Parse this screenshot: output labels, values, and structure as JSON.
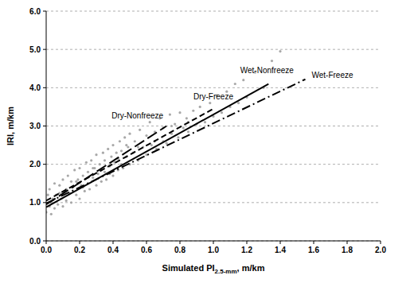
{
  "chart_data": {
    "type": "scatter",
    "x_label": "Simulated PI2.5-mm, m/km",
    "y_label": "IRI, m/km",
    "xlim": [
      0,
      2
    ],
    "ylim": [
      0,
      6
    ],
    "xticks": [
      {
        "value": 0,
        "label": "0.0"
      },
      {
        "value": 0.2,
        "label": "0.2"
      },
      {
        "value": 0.4,
        "label": "0.4"
      },
      {
        "value": 0.6,
        "label": "0.6"
      },
      {
        "value": 0.8,
        "label": "0.8"
      },
      {
        "value": 1,
        "label": "1.0"
      },
      {
        "value": 1.2,
        "label": "1.2"
      },
      {
        "value": 1.4,
        "label": "1.4"
      },
      {
        "value": 1.6,
        "label": "1.6"
      },
      {
        "value": 1.8,
        "label": "1.8"
      },
      {
        "value": 2,
        "label": "2.0"
      }
    ],
    "yticks": [
      {
        "value": 0,
        "label": "0.0"
      },
      {
        "value": 1,
        "label": "1.0"
      },
      {
        "value": 2,
        "label": "2.0"
      },
      {
        "value": 3,
        "label": "3.0"
      },
      {
        "value": 4,
        "label": "4.0"
      },
      {
        "value": 5,
        "label": "5.0"
      },
      {
        "value": 6,
        "label": "6.0"
      }
    ],
    "grid": true,
    "series": [
      {
        "type": "scatter",
        "color": "#a8a8a8",
        "marker": "circle",
        "x": [
          0.0,
          0.01,
          0.02,
          0.02,
          0.03,
          0.04,
          0.05,
          0.05,
          0.06,
          0.07,
          0.08,
          0.09,
          0.1,
          0.1,
          0.11,
          0.12,
          0.13,
          0.14,
          0.15,
          0.15,
          0.16,
          0.17,
          0.18,
          0.19,
          0.2,
          0.2,
          0.21,
          0.22,
          0.23,
          0.24,
          0.25,
          0.25,
          0.26,
          0.27,
          0.28,
          0.29,
          0.3,
          0.3,
          0.31,
          0.32,
          0.33,
          0.34,
          0.35,
          0.35,
          0.36,
          0.37,
          0.38,
          0.39,
          0.4,
          0.4,
          0.41,
          0.42,
          0.43,
          0.44,
          0.45,
          0.45,
          0.46,
          0.47,
          0.48,
          0.49,
          0.5,
          0.5,
          0.52,
          0.53,
          0.55,
          0.56,
          0.58,
          0.6,
          0.6,
          0.62,
          0.63,
          0.65,
          0.66,
          0.68,
          0.7,
          0.7,
          0.72,
          0.74,
          0.75,
          0.77,
          0.79,
          0.8,
          0.82,
          0.84,
          0.85,
          0.88,
          0.9,
          0.92,
          0.95,
          0.98,
          1.0,
          1.02,
          1.05,
          1.08,
          1.1,
          1.13,
          1.15,
          1.18,
          1.2,
          1.25,
          1.3,
          1.35,
          1.4,
          0.03,
          0.08,
          0.12,
          0.18,
          0.22,
          0.28,
          0.33,
          0.38,
          0.43,
          0.48,
          0.55,
          0.65,
          0.75,
          0.85
        ],
        "values": [
          0.75,
          1.2,
          0.9,
          1.35,
          0.7,
          1.1,
          0.85,
          1.5,
          1.2,
          0.95,
          1.45,
          1.1,
          0.9,
          1.6,
          1.3,
          1.05,
          1.7,
          1.25,
          1.0,
          1.55,
          1.4,
          1.85,
          1.2,
          1.6,
          1.1,
          1.9,
          1.45,
          1.7,
          1.3,
          2.05,
          1.5,
          1.8,
          1.35,
          2.1,
          1.65,
          1.9,
          1.45,
          2.25,
          1.75,
          2.0,
          1.55,
          2.3,
          1.8,
          2.1,
          1.6,
          2.4,
          1.95,
          2.2,
          1.7,
          2.5,
          2.05,
          2.3,
          1.85,
          2.6,
          2.0,
          2.35,
          1.9,
          2.7,
          2.2,
          2.45,
          2.0,
          2.8,
          2.3,
          2.6,
          2.1,
          2.9,
          2.45,
          2.25,
          2.75,
          3.1,
          2.5,
          2.85,
          2.4,
          3.2,
          2.6,
          2.95,
          2.55,
          3.3,
          2.8,
          3.05,
          2.7,
          3.35,
          2.95,
          3.2,
          2.85,
          3.4,
          3.05,
          3.5,
          3.1,
          3.6,
          3.25,
          3.8,
          3.35,
          3.9,
          3.5,
          4.1,
          3.6,
          4.2,
          3.75,
          4.4,
          4.0,
          4.7,
          4.95,
          1.0,
          1.25,
          1.35,
          1.55,
          1.4,
          1.9,
          1.85,
          1.75,
          2.15,
          2.5,
          2.45,
          2.6,
          3.0,
          3.1
        ]
      },
      {
        "name": "Dry-Nonfreeze",
        "type": "line",
        "color": "#000000",
        "line_style": "long-dash",
        "x": [
          0.0,
          0.72
        ],
        "values": [
          0.95,
          3.0
        ]
      },
      {
        "name": "Dry-Freeze",
        "type": "line",
        "color": "#000000",
        "line_style": "dashed",
        "x": [
          0.0,
          1.0
        ],
        "values": [
          1.05,
          3.45
        ]
      },
      {
        "name": "Wet-Nonfreeze",
        "type": "line",
        "color": "#000000",
        "line_style": "solid",
        "x": [
          0.0,
          1.33
        ],
        "values": [
          0.88,
          4.1
        ]
      },
      {
        "name": "Wet-Freeze",
        "type": "line",
        "color": "#000000",
        "line_style": "dash-dot",
        "x": [
          0.0,
          1.55
        ],
        "values": [
          0.98,
          4.22
        ]
      }
    ]
  }
}
